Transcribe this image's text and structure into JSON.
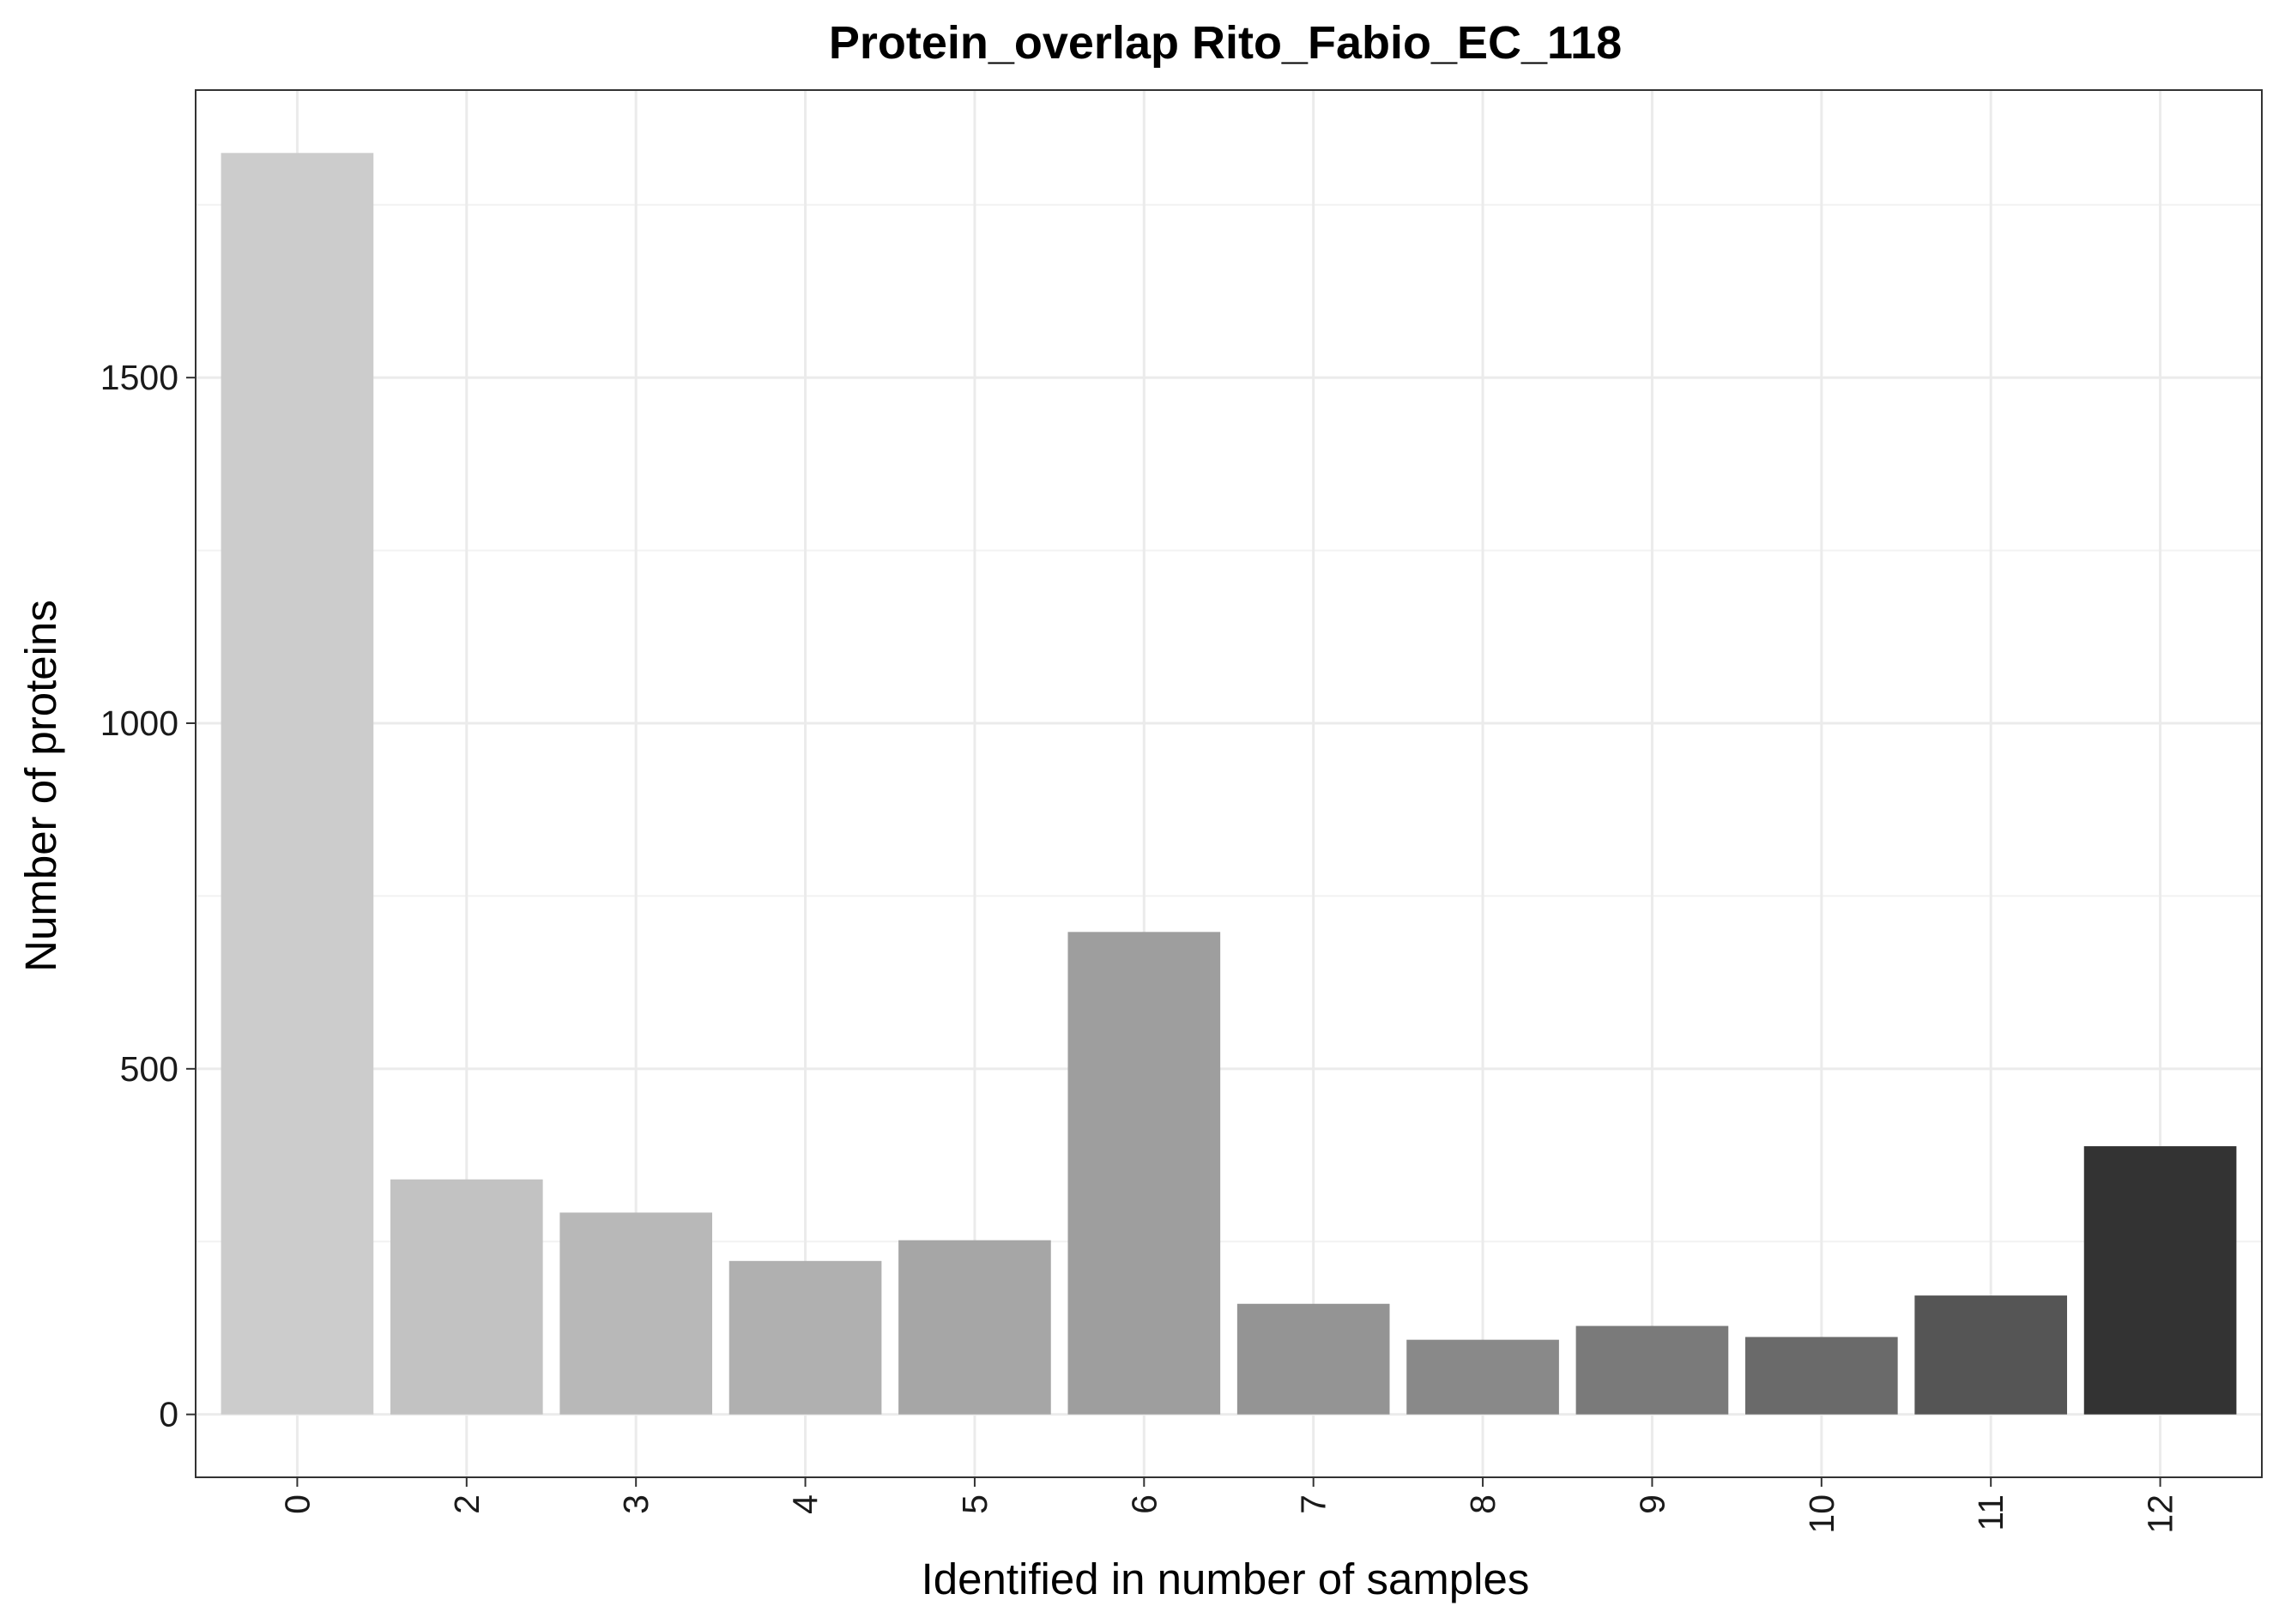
{
  "chart_data": {
    "type": "bar",
    "title": "Protein_overlap Rito_Fabio_EC_118",
    "xlabel": "Identified in number of samples",
    "ylabel": "Number of proteins",
    "categories": [
      "0",
      "2",
      "3",
      "4",
      "5",
      "6",
      "7",
      "8",
      "9",
      "10",
      "11",
      "12"
    ],
    "values": [
      1825,
      340,
      292,
      222,
      252,
      698,
      160,
      108,
      128,
      112,
      172,
      388
    ],
    "bar_colors": [
      "#CCCCCC",
      "#C2C2C2",
      "#B8B8B8",
      "#B0B0B0",
      "#A6A6A6",
      "#9E9E9E",
      "#949494",
      "#898989",
      "#7A7A7A",
      "#6A6A6A",
      "#555555",
      "#333333"
    ],
    "yticks": [
      0,
      500,
      1000,
      1500
    ],
    "ylim": [
      -91,
      1916
    ],
    "grid": true,
    "legend": "none",
    "colors": {
      "panel_border": "#333333",
      "grid_major": "#EBEBEB",
      "grid_minor": "#F2F2F2",
      "background": "#FFFFFF"
    }
  }
}
